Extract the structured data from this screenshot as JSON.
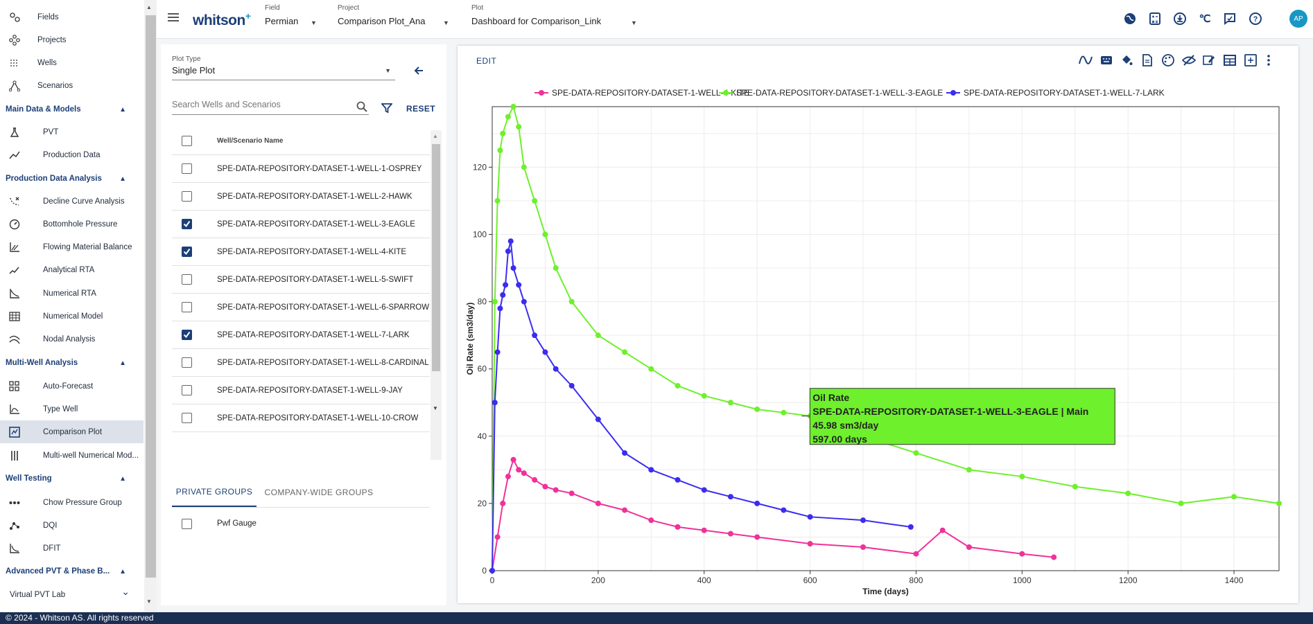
{
  "sidebar": {
    "top_items": [
      {
        "label": "Fields",
        "icon": "fields-icon"
      },
      {
        "label": "Projects",
        "icon": "projects-icon"
      },
      {
        "label": "Wells",
        "icon": "wells-icon"
      },
      {
        "label": "Scenarios",
        "icon": "scenarios-icon"
      }
    ],
    "sections": [
      {
        "title": "Main Data & Models",
        "items": [
          {
            "label": "PVT",
            "icon": "flask-icon"
          },
          {
            "label": "Production Data",
            "icon": "trend-icon"
          }
        ]
      },
      {
        "title": "Production Data Analysis",
        "items": [
          {
            "label": "Decline Curve Analysis",
            "icon": "decline-icon"
          },
          {
            "label": "Bottomhole Pressure",
            "icon": "gauge-icon"
          },
          {
            "label": "Flowing Material Balance",
            "icon": "fmb-icon"
          },
          {
            "label": "Analytical RTA",
            "icon": "analytical-rta-icon"
          },
          {
            "label": "Numerical RTA",
            "icon": "numerical-rta-icon"
          },
          {
            "label": "Numerical Model",
            "icon": "grid-icon"
          },
          {
            "label": "Nodal Analysis",
            "icon": "nodal-icon"
          }
        ]
      },
      {
        "title": "Multi-Well Analysis",
        "items": [
          {
            "label": "Auto-Forecast",
            "icon": "auto-forecast-icon"
          },
          {
            "label": "Type Well",
            "icon": "type-well-icon"
          },
          {
            "label": "Comparison Plot",
            "icon": "comparison-plot-icon",
            "active": true
          },
          {
            "label": "Multi-well Numerical Mod...",
            "icon": "multiwell-icon"
          }
        ]
      },
      {
        "title": "Well Testing",
        "items": [
          {
            "label": "Chow Pressure Group",
            "icon": "chow-icon"
          },
          {
            "label": "DQI",
            "icon": "dqi-icon"
          },
          {
            "label": "DFIT",
            "icon": "dfit-icon"
          }
        ]
      },
      {
        "title": "Advanced PVT & Phase B...",
        "items": [
          {
            "label": "Virtual PVT Lab",
            "icon": ""
          }
        ]
      }
    ]
  },
  "footer": {
    "text": "© 2024 - Whitson AS. All rights reserved"
  },
  "topbar": {
    "logo": "whitson",
    "logo_sup": "+",
    "field": {
      "caption": "Field",
      "value": "Permian"
    },
    "project": {
      "caption": "Project",
      "value": "Comparison Plot_Ana"
    },
    "plot": {
      "caption": "Plot",
      "value": "Dashboard for Comparison_Link"
    },
    "avatar": "AP"
  },
  "left_panel": {
    "plot_type_caption": "Plot Type",
    "plot_type_value": "Single Plot",
    "search_placeholder": "Search Wells and Scenarios",
    "reset_label": "RESET",
    "column_header": "Well/Scenario Name",
    "wells": [
      {
        "name": "SPE-DATA-REPOSITORY-DATASET-1-WELL-1-OSPREY",
        "checked": false
      },
      {
        "name": "SPE-DATA-REPOSITORY-DATASET-1-WELL-2-HAWK",
        "checked": false
      },
      {
        "name": "SPE-DATA-REPOSITORY-DATASET-1-WELL-3-EAGLE",
        "checked": true
      },
      {
        "name": "SPE-DATA-REPOSITORY-DATASET-1-WELL-4-KITE",
        "checked": true
      },
      {
        "name": "SPE-DATA-REPOSITORY-DATASET-1-WELL-5-SWIFT",
        "checked": false
      },
      {
        "name": "SPE-DATA-REPOSITORY-DATASET-1-WELL-6-SPARROW",
        "checked": false
      },
      {
        "name": "SPE-DATA-REPOSITORY-DATASET-1-WELL-7-LARK",
        "checked": true
      },
      {
        "name": "SPE-DATA-REPOSITORY-DATASET-1-WELL-8-CARDINAL",
        "checked": false
      },
      {
        "name": "SPE-DATA-REPOSITORY-DATASET-1-WELL-9-JAY",
        "checked": false
      },
      {
        "name": "SPE-DATA-REPOSITORY-DATASET-1-WELL-10-CROW",
        "checked": false
      }
    ],
    "tabs": [
      {
        "label": "PRIVATE GROUPS",
        "active": true
      },
      {
        "label": "COMPANY-WIDE GROUPS",
        "active": false
      }
    ],
    "groups": [
      {
        "name": "Pwf Gauge",
        "checked": false
      }
    ]
  },
  "plot_panel": {
    "edit_label": "EDIT"
  },
  "chart_data": {
    "type": "scatter",
    "mode": "lines+markers",
    "title": "",
    "xlabel": "Time (days)",
    "ylabel": "Oil Rate (sm3/day)",
    "xlim": [
      0,
      1485
    ],
    "ylim": [
      0,
      138
    ],
    "xticks": [
      0,
      200,
      400,
      600,
      800,
      1000,
      1200,
      1400
    ],
    "yticks": [
      0,
      20,
      40,
      60,
      80,
      100,
      120
    ],
    "grid": true,
    "legend_position": "top",
    "series": [
      {
        "name": "SPE-DATA-REPOSITORY-DATASET-1-WELL-4-KITE",
        "color": "#f0319a",
        "x": [
          0,
          10,
          20,
          30,
          40,
          50,
          60,
          80,
          100,
          120,
          150,
          200,
          250,
          300,
          350,
          400,
          450,
          500,
          600,
          700,
          800,
          850,
          900,
          1000,
          1060
        ],
        "y": [
          0,
          10,
          20,
          28,
          33,
          30,
          29,
          27,
          25,
          24,
          23,
          20,
          18,
          15,
          13,
          12,
          11,
          10,
          8,
          7,
          5,
          12,
          7,
          5,
          4
        ]
      },
      {
        "name": "SPE-DATA-REPOSITORY-DATASET-1-WELL-3-EAGLE",
        "color": "#6ef02c",
        "x": [
          0,
          5,
          10,
          15,
          20,
          30,
          40,
          50,
          60,
          80,
          100,
          120,
          150,
          200,
          250,
          300,
          350,
          400,
          450,
          500,
          550,
          600,
          700,
          800,
          900,
          1000,
          1100,
          1200,
          1300,
          1400,
          1485
        ],
        "y": [
          0,
          80,
          110,
          125,
          130,
          135,
          138,
          132,
          120,
          110,
          100,
          90,
          80,
          70,
          65,
          60,
          55,
          52,
          50,
          48,
          47,
          46,
          40,
          35,
          30,
          28,
          25,
          23,
          20,
          22,
          20
        ]
      },
      {
        "name": "SPE-DATA-REPOSITORY-DATASET-1-WELL-7-LARK",
        "color": "#3b2cf0",
        "x": [
          0,
          5,
          10,
          15,
          20,
          25,
          30,
          35,
          40,
          50,
          60,
          80,
          100,
          120,
          150,
          200,
          250,
          300,
          350,
          400,
          450,
          500,
          550,
          600,
          700,
          790
        ],
        "y": [
          0,
          50,
          65,
          78,
          82,
          85,
          95,
          98,
          90,
          85,
          80,
          70,
          65,
          60,
          55,
          45,
          35,
          30,
          27,
          24,
          22,
          20,
          18,
          16,
          15,
          13
        ]
      }
    ],
    "tooltip": {
      "title": "Oil Rate",
      "series": "SPE-DATA-REPOSITORY-DATASET-1-WELL-3-EAGLE | Main",
      "value": "45.98 sm3/day",
      "time": "597.00 days",
      "x": 597,
      "y": 45.98
    }
  }
}
